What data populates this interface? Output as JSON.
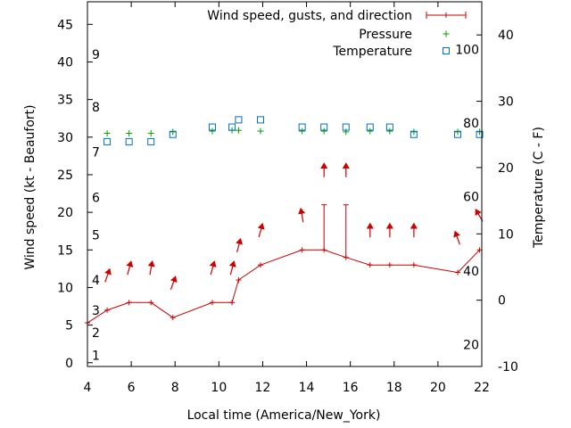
{
  "chart_data": {
    "type": "line",
    "xlabel": "Local time (America/New_York)",
    "ylabel": "Wind speed (kt - Beaufort)",
    "y2label": "Temperature (C - F)",
    "xlim": [
      4,
      22
    ],
    "ylim": [
      -0.5,
      48
    ],
    "y2lim": [
      -10,
      45
    ],
    "xticks": [
      4,
      6,
      8,
      10,
      12,
      14,
      16,
      18,
      20,
      22
    ],
    "yticks": [
      0,
      5,
      10,
      15,
      20,
      25,
      30,
      35,
      40,
      45
    ],
    "y2ticks": [
      -10,
      0,
      10,
      20,
      30,
      40
    ],
    "legend": {
      "position": "top-right",
      "entries": [
        {
          "label": "Wind speed, gusts, and direction",
          "color": "#cc0000",
          "marker": "errorbar"
        },
        {
          "label": "Pressure",
          "color": "#00a000",
          "marker": "plus"
        },
        {
          "label": "Temperature",
          "color": "#0070c0",
          "marker": "square"
        }
      ]
    },
    "beaufort_labels": [
      {
        "label": "1",
        "y": 1
      },
      {
        "label": "2",
        "y": 4
      },
      {
        "label": "3",
        "y": 7
      },
      {
        "label": "4",
        "y": 11
      },
      {
        "label": "5",
        "y": 17
      },
      {
        "label": "6",
        "y": 22
      },
      {
        "label": "7",
        "y": 28
      },
      {
        "label": "8",
        "y": 34
      },
      {
        "label": "9",
        "y": 41
      }
    ],
    "fahrenheit_labels": [
      {
        "label": "20",
        "temp_c": -6.7
      },
      {
        "label": "40",
        "temp_c": 4.4
      },
      {
        "label": "60",
        "temp_c": 15.6
      },
      {
        "label": "80",
        "temp_c": 26.7
      },
      {
        "label": "100",
        "temp_c": 37.8
      }
    ],
    "series": [
      {
        "name": "Wind speed, gusts, and direction",
        "color": "#cc0000",
        "x": [
          4,
          4.9,
          5.9,
          6.9,
          7.9,
          9.7,
          10.6,
          10.9,
          11.9,
          13.8,
          14.8,
          15.8,
          16.9,
          17.8,
          18.9,
          20.9,
          21.9
        ],
        "y": [
          5.3,
          7,
          8,
          8,
          6,
          8,
          8,
          11,
          13,
          15,
          15,
          14,
          13,
          13,
          13,
          12,
          15
        ],
        "gusts": [
          null,
          null,
          null,
          null,
          null,
          null,
          null,
          null,
          null,
          null,
          21,
          21,
          null,
          null,
          null,
          null,
          null
        ]
      },
      {
        "name": "Wind direction arrows",
        "color": "#cc0000",
        "x": [
          4.9,
          5.9,
          6.9,
          7.9,
          9.7,
          10.6,
          10.9,
          11.9,
          13.8,
          14.8,
          15.8,
          16.9,
          17.8,
          18.9,
          20.9,
          21.9
        ],
        "y": [
          11.5,
          12.5,
          12.5,
          10.5,
          12.5,
          12.5,
          15.5,
          17.5,
          19.5,
          25.5,
          25.5,
          17.5,
          17.5,
          17.5,
          16.5,
          19.5
        ],
        "direction_deg": [
          200,
          195,
          190,
          200,
          195,
          195,
          195,
          195,
          170,
          180,
          180,
          180,
          180,
          180,
          160,
          150
        ]
      },
      {
        "name": "Pressure",
        "color": "#00a000",
        "x": [
          4.9,
          5.9,
          6.9,
          7.9,
          9.7,
          10.6,
          10.9,
          11.9,
          13.8,
          14.8,
          15.8,
          16.9,
          17.8,
          18.9,
          20.9,
          21.9
        ],
        "y": [
          30.5,
          30.5,
          30.5,
          30.7,
          30.8,
          30.9,
          30.9,
          30.8,
          30.8,
          30.8,
          30.7,
          30.8,
          30.8,
          30.7,
          30.7,
          30.7
        ]
      },
      {
        "name": "Temperature",
        "color": "#0070c0",
        "x": [
          4.9,
          5.9,
          6.9,
          7.9,
          9.7,
          10.6,
          10.9,
          11.9,
          13.8,
          14.8,
          15.8,
          16.9,
          17.8,
          18.9,
          20.9,
          21.9
        ],
        "y_c": [
          23.9,
          23.9,
          23.9,
          25,
          26.1,
          26.1,
          27.2,
          27.2,
          26.1,
          26.1,
          26.1,
          26.1,
          26.1,
          25,
          25,
          25
        ]
      }
    ]
  }
}
